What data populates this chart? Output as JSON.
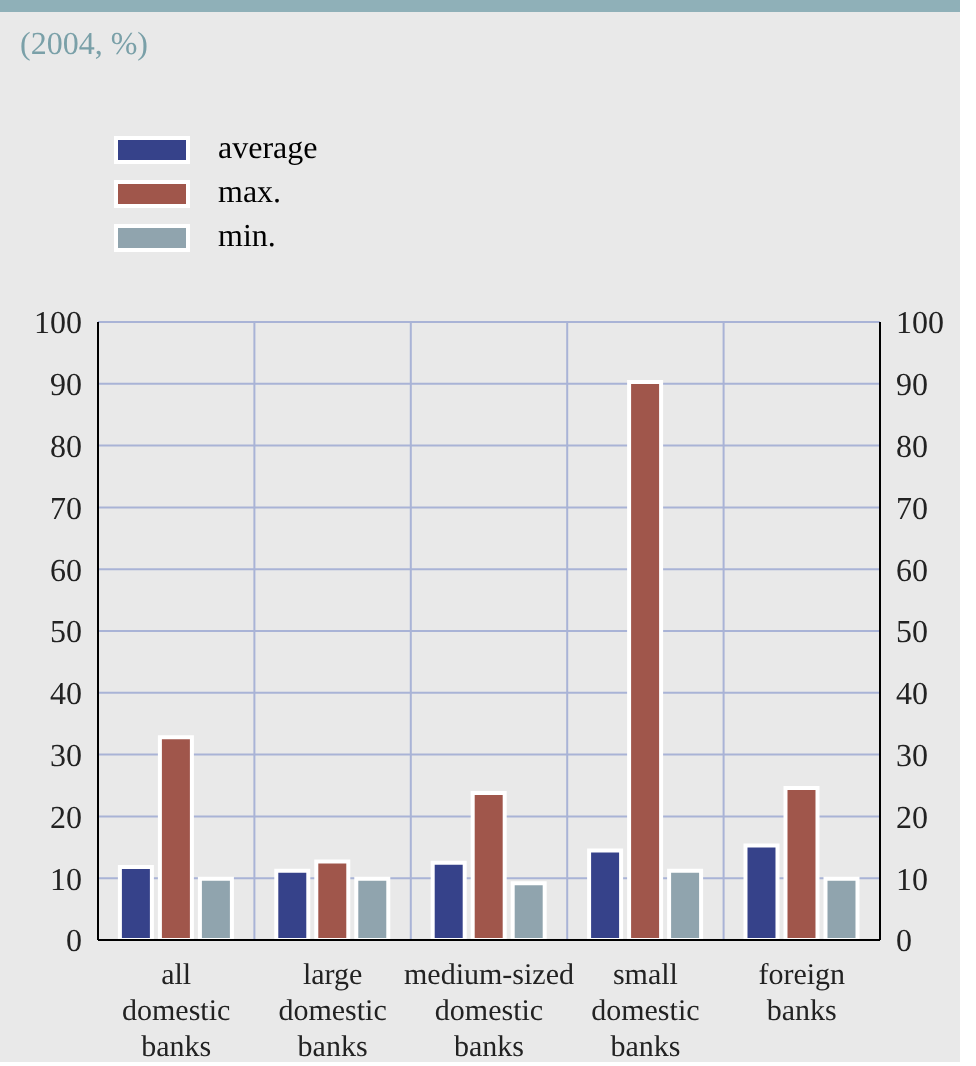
{
  "chart_data": {
    "type": "bar",
    "subtitle": "(2004, %)",
    "categories": [
      "all domestic banks",
      "large domestic banks",
      "medium-sized domestic banks",
      "small domestic banks",
      "foreign banks"
    ],
    "series": [
      {
        "name": "average",
        "color": "#36428a",
        "values": [
          11.8,
          11.2,
          12.5,
          14.5,
          15.3
        ]
      },
      {
        "name": "max.",
        "color": "#a0564b",
        "values": [
          32.8,
          12.7,
          23.8,
          90.3,
          24.6
        ]
      },
      {
        "name": "min.",
        "color": "#90a4ae",
        "values": [
          9.9,
          9.9,
          9.2,
          11.2,
          9.9
        ]
      }
    ],
    "ylim": [
      0,
      100
    ],
    "yticks": [
      0,
      10,
      20,
      30,
      40,
      50,
      60,
      70,
      80,
      90,
      100
    ],
    "y2lim": [
      0,
      100
    ],
    "y2ticks": [
      0,
      10,
      20,
      30,
      40,
      50,
      60,
      70,
      80,
      90,
      100
    ],
    "grid": true,
    "legend": "top left"
  }
}
